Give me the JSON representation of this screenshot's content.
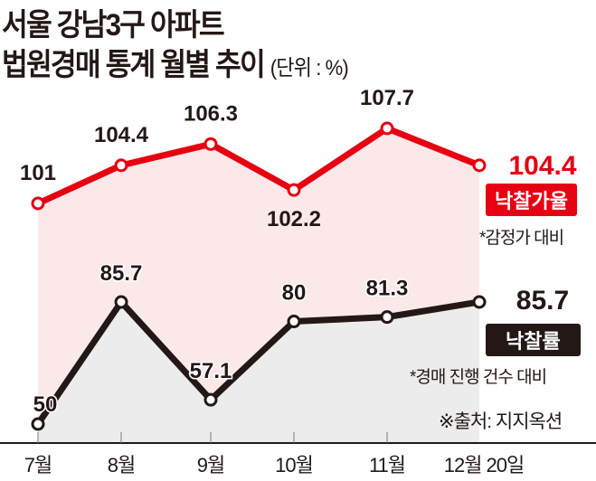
{
  "title_line1": "서울 강남3구 아파트",
  "title_line2": "법원경매 통계 월별 추이",
  "unit": "(단위 : %)",
  "source": "※출처: 지지옥션",
  "colors": {
    "red": "#e60012",
    "black": "#231815",
    "pink_fill": "#fbe9ea",
    "gray_fill": "#ececec"
  },
  "chart_data": {
    "type": "line",
    "categories": [
      "7월",
      "8월",
      "9월",
      "10월",
      "11월",
      "12월 20일"
    ],
    "series": [
      {
        "name": "낙찰가율",
        "note": "*감정가 대비",
        "values": [
          101,
          104.4,
          106.3,
          102.2,
          107.7,
          104.4
        ],
        "labels": [
          "101",
          "104.4",
          "106.3",
          "102.2",
          "107.7",
          "104.4"
        ]
      },
      {
        "name": "낙찰률",
        "note": "*경매 진행 건수 대비",
        "values": [
          50,
          85.7,
          57.1,
          80,
          81.3,
          85.7
        ],
        "labels": [
          "50",
          "85.7",
          "57.1",
          "80",
          "81.3",
          "85.7"
        ]
      }
    ]
  }
}
